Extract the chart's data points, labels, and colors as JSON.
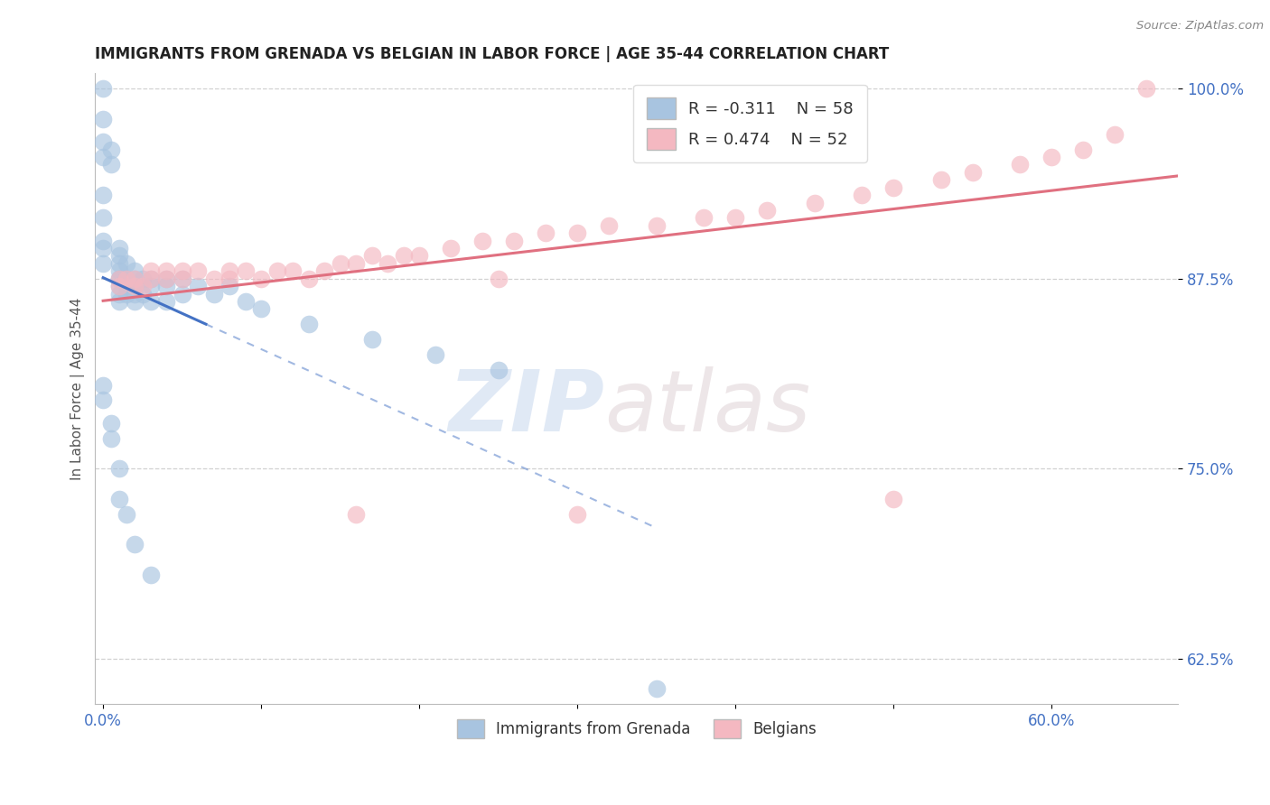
{
  "title": "IMMIGRANTS FROM GRENADA VS BELGIAN IN LABOR FORCE | AGE 35-44 CORRELATION CHART",
  "source_text": "Source: ZipAtlas.com",
  "ylabel": "In Labor Force | Age 35-44",
  "legend_labels": [
    "Immigrants from Grenada",
    "Belgians"
  ],
  "r_grenada": -0.311,
  "n_grenada": 58,
  "r_belgian": 0.474,
  "n_belgian": 52,
  "xlim": [
    -0.005,
    0.68
  ],
  "ylim": [
    0.595,
    1.01
  ],
  "color_grenada": "#a8c4e0",
  "color_belgian": "#f4b8c1",
  "line_color_grenada": "#4472c4",
  "line_color_belgian": "#e07080",
  "background_color": "#ffffff",
  "watermark_zip": "ZIP",
  "watermark_atlas": "atlas",
  "grenada_x": [
    0.0,
    0.0,
    0.0,
    0.0,
    0.005,
    0.005,
    0.0,
    0.0,
    0.0,
    0.0,
    0.0,
    0.01,
    0.01,
    0.01,
    0.01,
    0.01,
    0.01,
    0.01,
    0.01,
    0.01,
    0.015,
    0.015,
    0.015,
    0.015,
    0.02,
    0.02,
    0.02,
    0.02,
    0.02,
    0.025,
    0.025,
    0.03,
    0.03,
    0.03,
    0.04,
    0.04,
    0.04,
    0.05,
    0.05,
    0.06,
    0.07,
    0.08,
    0.09,
    0.1,
    0.13,
    0.17,
    0.21,
    0.25,
    0.0,
    0.0,
    0.005,
    0.005,
    0.01,
    0.01,
    0.015,
    0.02,
    0.03,
    0.35
  ],
  "grenada_y": [
    1.0,
    0.98,
    0.965,
    0.955,
    0.96,
    0.95,
    0.93,
    0.915,
    0.9,
    0.895,
    0.885,
    0.895,
    0.89,
    0.885,
    0.88,
    0.875,
    0.875,
    0.87,
    0.865,
    0.86,
    0.885,
    0.875,
    0.87,
    0.865,
    0.88,
    0.875,
    0.87,
    0.865,
    0.86,
    0.875,
    0.865,
    0.875,
    0.87,
    0.86,
    0.875,
    0.87,
    0.86,
    0.875,
    0.865,
    0.87,
    0.865,
    0.87,
    0.86,
    0.855,
    0.845,
    0.835,
    0.825,
    0.815,
    0.805,
    0.795,
    0.78,
    0.77,
    0.75,
    0.73,
    0.72,
    0.7,
    0.68,
    0.605
  ],
  "belgian_x": [
    0.01,
    0.01,
    0.015,
    0.02,
    0.02,
    0.025,
    0.03,
    0.03,
    0.04,
    0.04,
    0.05,
    0.05,
    0.06,
    0.07,
    0.08,
    0.08,
    0.09,
    0.1,
    0.11,
    0.12,
    0.13,
    0.14,
    0.15,
    0.16,
    0.17,
    0.18,
    0.19,
    0.2,
    0.22,
    0.24,
    0.26,
    0.28,
    0.3,
    0.32,
    0.35,
    0.38,
    0.4,
    0.42,
    0.45,
    0.48,
    0.5,
    0.53,
    0.55,
    0.58,
    0.6,
    0.62,
    0.64,
    0.66,
    0.16,
    0.25,
    0.3,
    0.5
  ],
  "belgian_y": [
    0.875,
    0.87,
    0.875,
    0.87,
    0.875,
    0.87,
    0.88,
    0.875,
    0.88,
    0.875,
    0.88,
    0.875,
    0.88,
    0.875,
    0.88,
    0.875,
    0.88,
    0.875,
    0.88,
    0.88,
    0.875,
    0.88,
    0.885,
    0.885,
    0.89,
    0.885,
    0.89,
    0.89,
    0.895,
    0.9,
    0.9,
    0.905,
    0.905,
    0.91,
    0.91,
    0.915,
    0.915,
    0.92,
    0.925,
    0.93,
    0.935,
    0.94,
    0.945,
    0.95,
    0.955,
    0.96,
    0.97,
    1.0,
    0.72,
    0.875,
    0.72,
    0.73
  ]
}
